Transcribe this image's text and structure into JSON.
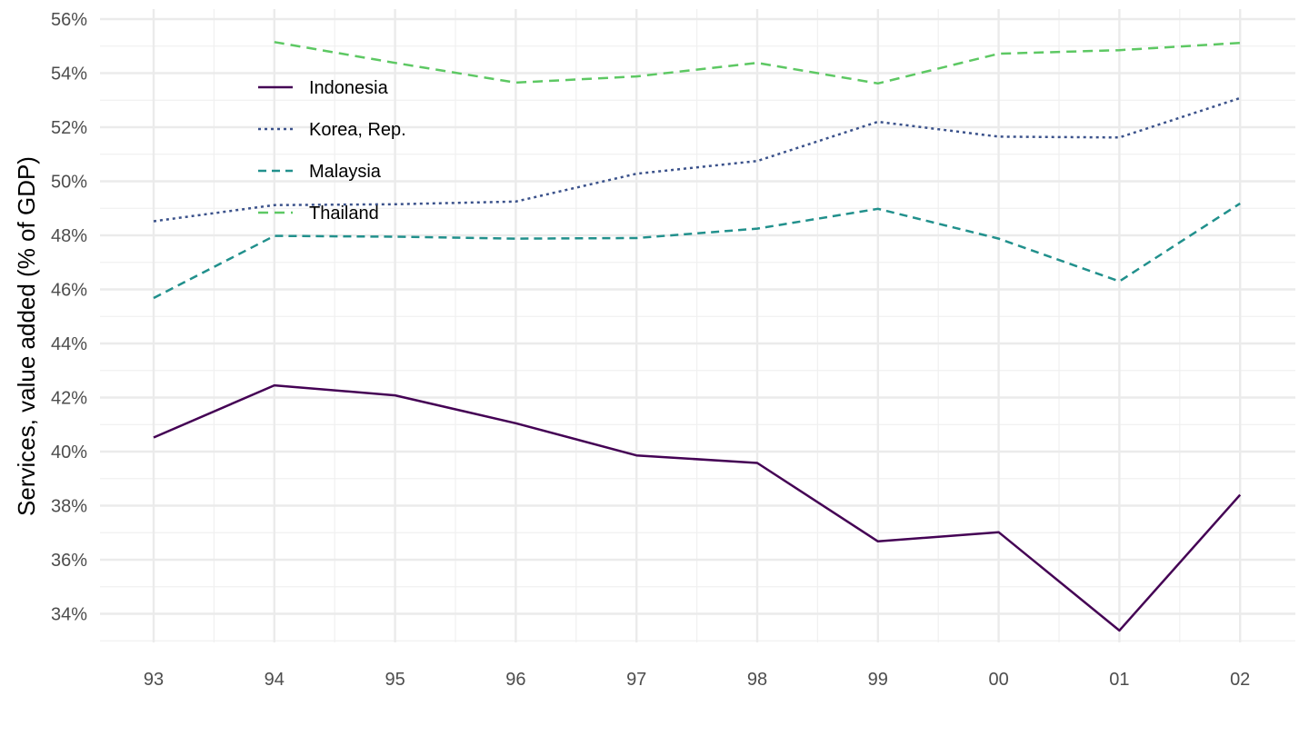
{
  "chart_data": {
    "type": "line",
    "title": "",
    "xlabel": "",
    "ylabel": "Services, value added (% of GDP)",
    "categories": [
      "93",
      "94",
      "95",
      "96",
      "97",
      "98",
      "99",
      "00",
      "01",
      "02"
    ],
    "ylim": [
      32.8,
      56.2
    ],
    "y_ticks": [
      34,
      36,
      38,
      40,
      42,
      44,
      46,
      48,
      50,
      52,
      54,
      56
    ],
    "y_tick_labels": [
      "34%",
      "36%",
      "38%",
      "40%",
      "42%",
      "44%",
      "46%",
      "48%",
      "50%",
      "52%",
      "54%",
      "56%"
    ],
    "grid": true,
    "legend_position": "top-left (inside plot)",
    "series": [
      {
        "name": "Indonesia",
        "color": "#440154",
        "dash": "solid",
        "values": [
          40.52,
          42.45,
          42.08,
          41.05,
          39.86,
          39.58,
          36.68,
          37.02,
          33.38,
          38.4
        ]
      },
      {
        "name": "Korea, Rep.",
        "color": "#3B528B",
        "dash": "dotted",
        "values": [
          48.52,
          49.12,
          49.15,
          49.25,
          50.28,
          50.75,
          52.2,
          51.65,
          51.62,
          53.08
        ]
      },
      {
        "name": "Malaysia",
        "color": "#21908C",
        "dash": "dashed",
        "values": [
          45.68,
          47.98,
          47.95,
          47.88,
          47.9,
          48.25,
          48.98,
          47.88,
          46.3,
          49.18
        ]
      },
      {
        "name": "Thailand",
        "color": "#5DC863",
        "dash": "longdash",
        "values": [
          null,
          55.15,
          54.38,
          53.65,
          53.88,
          54.38,
          53.62,
          54.72,
          54.85,
          55.12
        ]
      }
    ]
  }
}
